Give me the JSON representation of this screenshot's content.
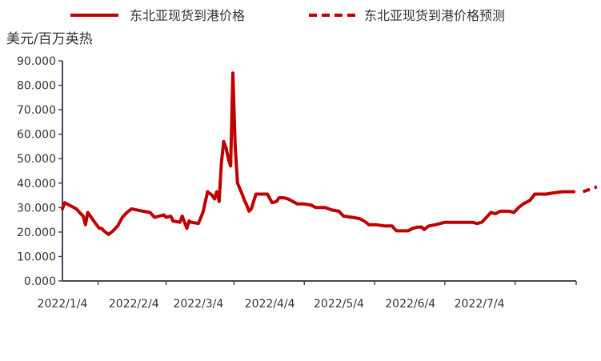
{
  "chart_data": {
    "type": "line",
    "title": "",
    "ylabel": "美元/百万英热",
    "xlabel": "",
    "ylim": [
      0,
      90
    ],
    "y_ticks": [
      "0.000",
      "10.000",
      "20.000",
      "30.000",
      "40.000",
      "50.000",
      "60.000",
      "70.000",
      "80.000",
      "90.000"
    ],
    "x_ticks": [
      "2022/1/4",
      "2022/2/4",
      "2022/3/4",
      "2022/4/4",
      "2022/5/4",
      "2022/6/4",
      "2022/7/4"
    ],
    "xlim": [
      "2022-01-04",
      "2022-08-15"
    ],
    "grid": false,
    "legend_position": "top",
    "colors": {
      "series": "#c00000",
      "axis": "#3f4a5a"
    },
    "series": [
      {
        "name": "东北亚现货到港价格",
        "style": "solid",
        "points": [
          [
            "2022-01-04",
            29.5
          ],
          [
            "2022-01-05",
            32.0
          ],
          [
            "2022-01-07",
            31.0
          ],
          [
            "2022-01-10",
            29.5
          ],
          [
            "2022-01-12",
            27.5
          ],
          [
            "2022-01-13",
            26.5
          ],
          [
            "2022-01-14",
            23.0
          ],
          [
            "2022-01-15",
            28.0
          ],
          [
            "2022-01-18",
            24.0
          ],
          [
            "2022-01-20",
            21.5
          ],
          [
            "2022-01-21",
            21.5
          ],
          [
            "2022-01-22",
            20.5
          ],
          [
            "2022-01-24",
            19.0
          ],
          [
            "2022-01-26",
            20.5
          ],
          [
            "2022-01-28",
            22.5
          ],
          [
            "2022-01-30",
            26.0
          ],
          [
            "2022-02-01",
            28.0
          ],
          [
            "2022-02-03",
            29.5
          ],
          [
            "2022-02-08",
            28.5
          ],
          [
            "2022-02-11",
            28.0
          ],
          [
            "2022-02-13",
            26.0
          ],
          [
            "2022-02-15",
            26.5
          ],
          [
            "2022-02-17",
            27.0
          ],
          [
            "2022-02-18",
            26.0
          ],
          [
            "2022-02-20",
            26.5
          ],
          [
            "2022-02-21",
            24.5
          ],
          [
            "2022-02-24",
            24.0
          ],
          [
            "2022-02-25",
            26.5
          ],
          [
            "2022-02-26",
            24.0
          ],
          [
            "2022-02-27",
            21.5
          ],
          [
            "2022-02-28",
            24.5
          ],
          [
            "2022-03-01",
            24.0
          ],
          [
            "2022-03-04",
            23.5
          ],
          [
            "2022-03-06",
            28.0
          ],
          [
            "2022-03-08",
            36.5
          ],
          [
            "2022-03-10",
            35.0
          ],
          [
            "2022-03-11",
            33.5
          ],
          [
            "2022-03-12",
            36.5
          ],
          [
            "2022-03-13",
            32.5
          ],
          [
            "2022-03-14",
            48.0
          ],
          [
            "2022-03-15",
            57.0
          ],
          [
            "2022-03-16",
            54.5
          ],
          [
            "2022-03-17",
            50.0
          ],
          [
            "2022-03-18",
            47.0
          ],
          [
            "2022-03-19",
            85.0
          ],
          [
            "2022-03-20",
            55.0
          ],
          [
            "2022-03-21",
            40.0
          ],
          [
            "2022-03-23",
            35.5
          ],
          [
            "2022-03-24",
            33.0
          ],
          [
            "2022-03-25",
            31.0
          ],
          [
            "2022-03-26",
            28.5
          ],
          [
            "2022-03-27",
            29.5
          ],
          [
            "2022-03-29",
            35.5
          ],
          [
            "2022-04-01",
            35.5
          ],
          [
            "2022-04-03",
            35.5
          ],
          [
            "2022-04-05",
            32.0
          ],
          [
            "2022-04-07",
            32.5
          ],
          [
            "2022-04-08",
            34.0
          ],
          [
            "2022-04-10",
            34.0
          ],
          [
            "2022-04-12",
            33.5
          ],
          [
            "2022-04-14",
            32.5
          ],
          [
            "2022-04-16",
            31.5
          ],
          [
            "2022-04-19",
            31.5
          ],
          [
            "2022-04-22",
            31.0
          ],
          [
            "2022-04-24",
            30.0
          ],
          [
            "2022-04-28",
            30.0
          ],
          [
            "2022-05-01",
            29.0
          ],
          [
            "2022-05-04",
            28.5
          ],
          [
            "2022-05-06",
            26.5
          ],
          [
            "2022-05-10",
            26.0
          ],
          [
            "2022-05-13",
            25.5
          ],
          [
            "2022-05-15",
            24.5
          ],
          [
            "2022-05-17",
            23.0
          ],
          [
            "2022-05-20",
            23.0
          ],
          [
            "2022-05-24",
            22.5
          ],
          [
            "2022-05-27",
            22.5
          ],
          [
            "2022-05-29",
            20.5
          ],
          [
            "2022-06-03",
            20.5
          ],
          [
            "2022-06-05",
            21.5
          ],
          [
            "2022-06-07",
            22.0
          ],
          [
            "2022-06-09",
            22.0
          ],
          [
            "2022-06-10",
            21.0
          ],
          [
            "2022-06-12",
            22.5
          ],
          [
            "2022-06-15",
            23.0
          ],
          [
            "2022-06-19",
            24.0
          ],
          [
            "2022-06-23",
            24.0
          ],
          [
            "2022-06-27",
            24.0
          ],
          [
            "2022-07-01",
            24.0
          ],
          [
            "2022-07-03",
            23.5
          ],
          [
            "2022-07-05",
            24.0
          ],
          [
            "2022-07-07",
            26.0
          ],
          [
            "2022-07-09",
            28.0
          ],
          [
            "2022-07-11",
            27.5
          ],
          [
            "2022-07-13",
            28.5
          ],
          [
            "2022-07-17",
            28.5
          ],
          [
            "2022-07-19",
            28.0
          ],
          [
            "2022-07-21",
            30.0
          ],
          [
            "2022-07-23",
            31.5
          ],
          [
            "2022-07-26",
            33.0
          ],
          [
            "2022-07-28",
            35.5
          ],
          [
            "2022-08-02",
            35.5
          ],
          [
            "2022-08-05",
            36.0
          ],
          [
            "2022-08-09",
            36.5
          ],
          [
            "2022-08-14",
            36.5
          ]
        ]
      },
      {
        "name": "东北亚现货到港价格预测",
        "style": "dashed",
        "points": [
          [
            "2022-08-18",
            36.5
          ],
          [
            "2022-08-21",
            37.5
          ],
          [
            "2022-08-24",
            38.5
          ]
        ]
      }
    ]
  }
}
